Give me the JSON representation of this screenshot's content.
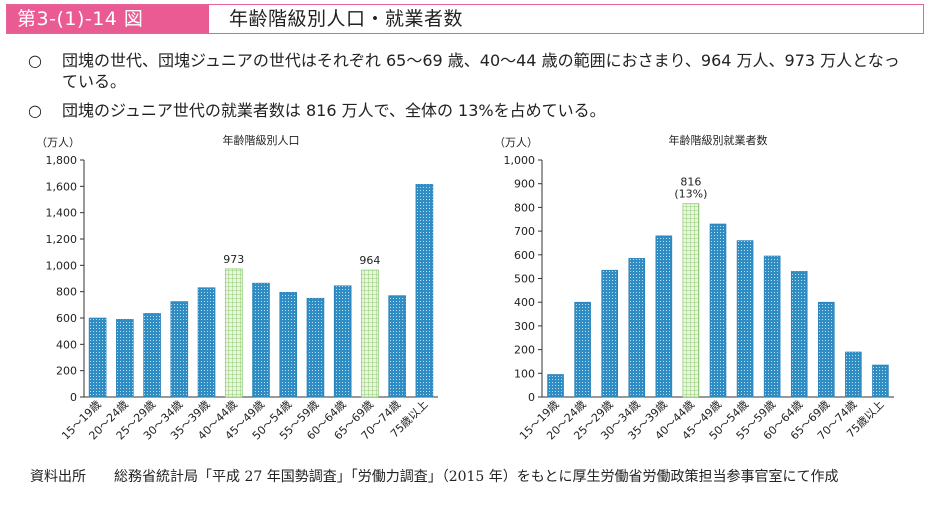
{
  "header": {
    "label": "第3-(1)-14 図",
    "title": "年齢階級別人口・就業者数"
  },
  "bullets": [
    {
      "mark": "○",
      "text": "団塊の世代、団塊ジュニアの世代はそれぞれ 65～69 歳、40～44 歳の範囲におさまり、964 万人、973 万人となっている。"
    },
    {
      "mark": "○",
      "text": "団塊のジュニア世代の就業者数は 816 万人で、全体の 13%を占めている。"
    }
  ],
  "colors": {
    "bar": "#2f8dc4",
    "highlight": "#b6e09a",
    "accent": "#ea5b93"
  },
  "chart_data": [
    {
      "type": "bar",
      "title": "年齢階級別人口",
      "ylabel": "（万人）",
      "xlabel": "",
      "ylim": [
        0,
        1800
      ],
      "yticks": [
        0,
        200,
        400,
        600,
        800,
        1000,
        1200,
        1400,
        1600,
        1800
      ],
      "ytick_labels": [
        "0",
        "200",
        "400",
        "600",
        "800",
        "1,000",
        "1,200",
        "1,400",
        "1,600",
        "1,800"
      ],
      "categories": [
        "15～19歳",
        "20～24歳",
        "25～29歳",
        "30～34歳",
        "35～39歳",
        "40～44歳",
        "45～49歳",
        "50～54歳",
        "55～59歳",
        "60～64歳",
        "65～69歳",
        "70～74歳",
        "75歳以上"
      ],
      "values": [
        600,
        590,
        635,
        725,
        830,
        973,
        865,
        795,
        750,
        845,
        964,
        770,
        1615
      ],
      "highlight": [
        5,
        10
      ],
      "annotations": [
        {
          "index": 5,
          "text": "973"
        },
        {
          "index": 10,
          "text": "964"
        }
      ]
    },
    {
      "type": "bar",
      "title": "年齢階級別就業者数",
      "ylabel": "（万人）",
      "xlabel": "",
      "ylim": [
        0,
        1000
      ],
      "yticks": [
        0,
        100,
        200,
        300,
        400,
        500,
        600,
        700,
        800,
        900,
        1000
      ],
      "ytick_labels": [
        "0",
        "100",
        "200",
        "300",
        "400",
        "500",
        "600",
        "700",
        "800",
        "900",
        "1,000"
      ],
      "categories": [
        "15～19歳",
        "20～24歳",
        "25～29歳",
        "30～34歳",
        "35～39歳",
        "40～44歳",
        "45～49歳",
        "50～54歳",
        "55～59歳",
        "60～64歳",
        "65～69歳",
        "70～74歳",
        "75歳以上"
      ],
      "values": [
        95,
        400,
        535,
        585,
        680,
        816,
        730,
        660,
        595,
        530,
        400,
        190,
        135
      ],
      "highlight": [
        5
      ],
      "annotations": [
        {
          "index": 5,
          "text": "816"
        },
        {
          "index": 5,
          "text": "(13%)"
        }
      ]
    }
  ],
  "footer": {
    "label": "資料出所",
    "text": "総務省統計局「平成 27 年国勢調査」「労働力調査」（2015 年）をもとに厚生労働省労働政策担当参事官室にて作成"
  }
}
